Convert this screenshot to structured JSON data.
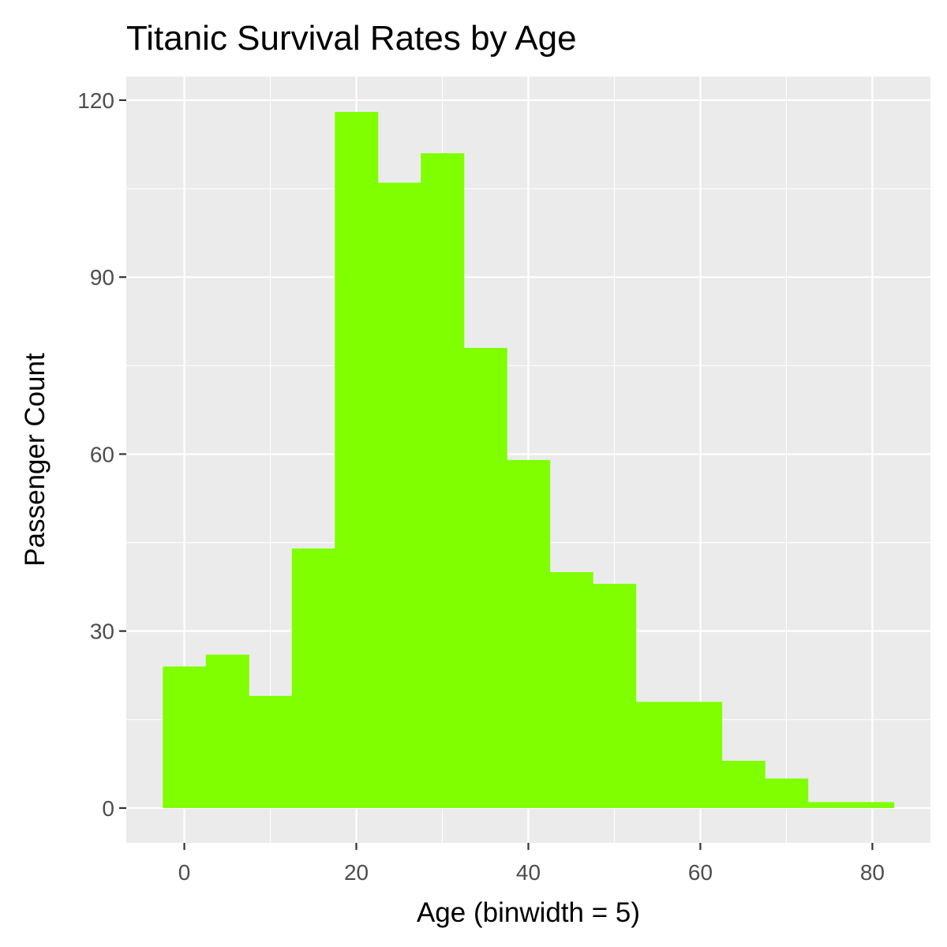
{
  "chart_data": {
    "type": "bar",
    "title": "Titanic Survival Rates by Age",
    "xlabel": "Age (binwidth = 5)",
    "ylabel": "Passenger Count",
    "binwidth": 5,
    "bins": [
      {
        "x0": -2.5,
        "x1": 2.5,
        "count": 24
      },
      {
        "x0": 2.5,
        "x1": 7.5,
        "count": 26
      },
      {
        "x0": 7.5,
        "x1": 12.5,
        "count": 19
      },
      {
        "x0": 12.5,
        "x1": 17.5,
        "count": 44
      },
      {
        "x0": 17.5,
        "x1": 22.5,
        "count": 118
      },
      {
        "x0": 22.5,
        "x1": 27.5,
        "count": 106
      },
      {
        "x0": 27.5,
        "x1": 32.5,
        "count": 111
      },
      {
        "x0": 32.5,
        "x1": 37.5,
        "count": 78
      },
      {
        "x0": 37.5,
        "x1": 42.5,
        "count": 59
      },
      {
        "x0": 42.5,
        "x1": 47.5,
        "count": 40
      },
      {
        "x0": 47.5,
        "x1": 52.5,
        "count": 38
      },
      {
        "x0": 52.5,
        "x1": 57.5,
        "count": 18
      },
      {
        "x0": 57.5,
        "x1": 62.5,
        "count": 18
      },
      {
        "x0": 62.5,
        "x1": 67.5,
        "count": 8
      },
      {
        "x0": 67.5,
        "x1": 72.5,
        "count": 5
      },
      {
        "x0": 72.5,
        "x1": 77.5,
        "count": 1
      },
      {
        "x0": 77.5,
        "x1": 82.5,
        "count": 1
      }
    ],
    "xlim": [
      -6.75,
      86.75
    ],
    "ylim": [
      -5.9,
      124
    ],
    "x_ticks": [
      0,
      20,
      40,
      60,
      80
    ],
    "x_minor": [
      10,
      30,
      50,
      70
    ],
    "y_ticks": [
      0,
      30,
      60,
      90,
      120
    ],
    "y_minor": [
      15,
      45,
      75,
      105
    ],
    "grid": true,
    "colors": {
      "bar": "#7fff00",
      "panel": "#ebebeb",
      "grid": "#ffffff",
      "tick_text": "#4d4d4d",
      "tick_mark": "#333333"
    }
  }
}
